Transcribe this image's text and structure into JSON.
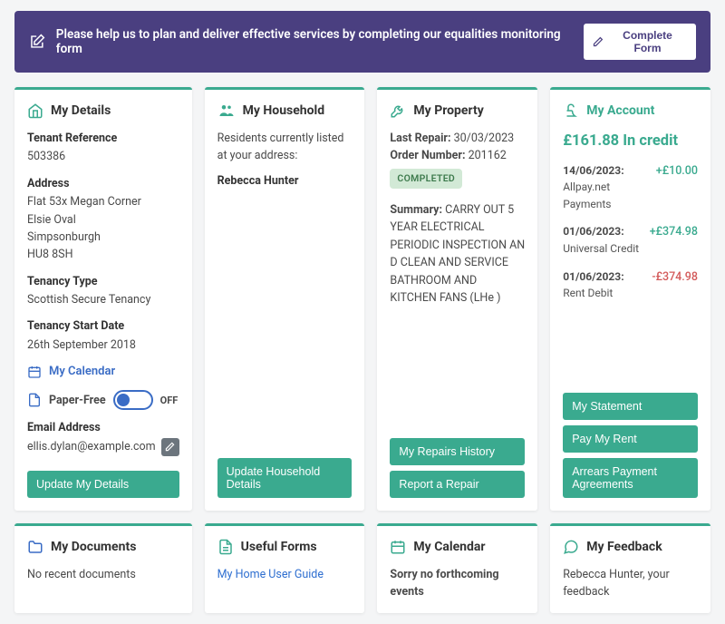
{
  "banner": {
    "text": "Please help us to plan and deliver effective services by completing our equalities monitoring form",
    "button_label": "Complete Form"
  },
  "details": {
    "title": "My Details",
    "tenant_ref_label": "Tenant Reference",
    "tenant_ref": "503386",
    "address_label": "Address",
    "address_line1": "Flat 53x Megan Corner",
    "address_line2": "Elsie Oval",
    "address_line3": "Simpsonburgh",
    "address_postcode": "HU8 8SH",
    "tenancy_type_label": "Tenancy Type",
    "tenancy_type": "Scottish Secure Tenancy",
    "start_date_label": "Tenancy Start Date",
    "start_date": "26th September 2018",
    "calendar_label": "My Calendar",
    "paper_free_label": "Paper-Free",
    "paper_free_state": "OFF",
    "email_label": "Email Address",
    "email": "ellis.dylan@example.com",
    "update_btn": "Update My Details"
  },
  "household": {
    "title": "My Household",
    "intro": "Residents currently listed at your address:",
    "resident_name": "Rebecca Hunter",
    "update_btn": "Update Household Details"
  },
  "property": {
    "title": "My Property",
    "last_repair_label": "Last Repair:",
    "last_repair_value": " 30/03/2023",
    "order_label": "Order Number:",
    "order_value": " 201162",
    "status": "COMPLETED",
    "summary_label": "Summary:",
    "summary_value": " CARRY OUT 5 YEAR ELECTRICAL PERIODIC INSPECTION AN D CLEAN AND SERVICE BATHROOM AND KITCHEN FANS (LHe )",
    "history_btn": "My Repairs History",
    "report_btn": "Report a Repair"
  },
  "account": {
    "title": "My Account",
    "balance": "£161.88 In credit",
    "tx": [
      {
        "date": "14/06/2023:",
        "desc": "Allpay.net Payments",
        "amt": "+£10.00",
        "pos": true
      },
      {
        "date": "01/06/2023:",
        "desc": "Universal Credit",
        "amt": "+£374.98",
        "pos": true
      },
      {
        "date": "01/06/2023:",
        "desc": "Rent Debit",
        "amt": "-£374.98",
        "pos": false
      }
    ],
    "statement_btn": "My Statement",
    "pay_btn": "Pay My Rent",
    "arrears_btn": "Arrears Payment Agreements"
  },
  "documents": {
    "title": "My Documents",
    "body": "No recent documents"
  },
  "forms": {
    "title": "Useful Forms",
    "link": "My Home User Guide"
  },
  "calendar": {
    "title": "My Calendar",
    "body": "Sorry no forthcoming events"
  },
  "feedback": {
    "title": "My Feedback",
    "body": "Rebecca Hunter, your feedback"
  },
  "colors": {
    "accent": "#3aaa8f",
    "banner_bg": "#4a3f80",
    "link": "#2f6fd0",
    "pos": "#3aaa8f",
    "neg": "#d35a5a"
  }
}
